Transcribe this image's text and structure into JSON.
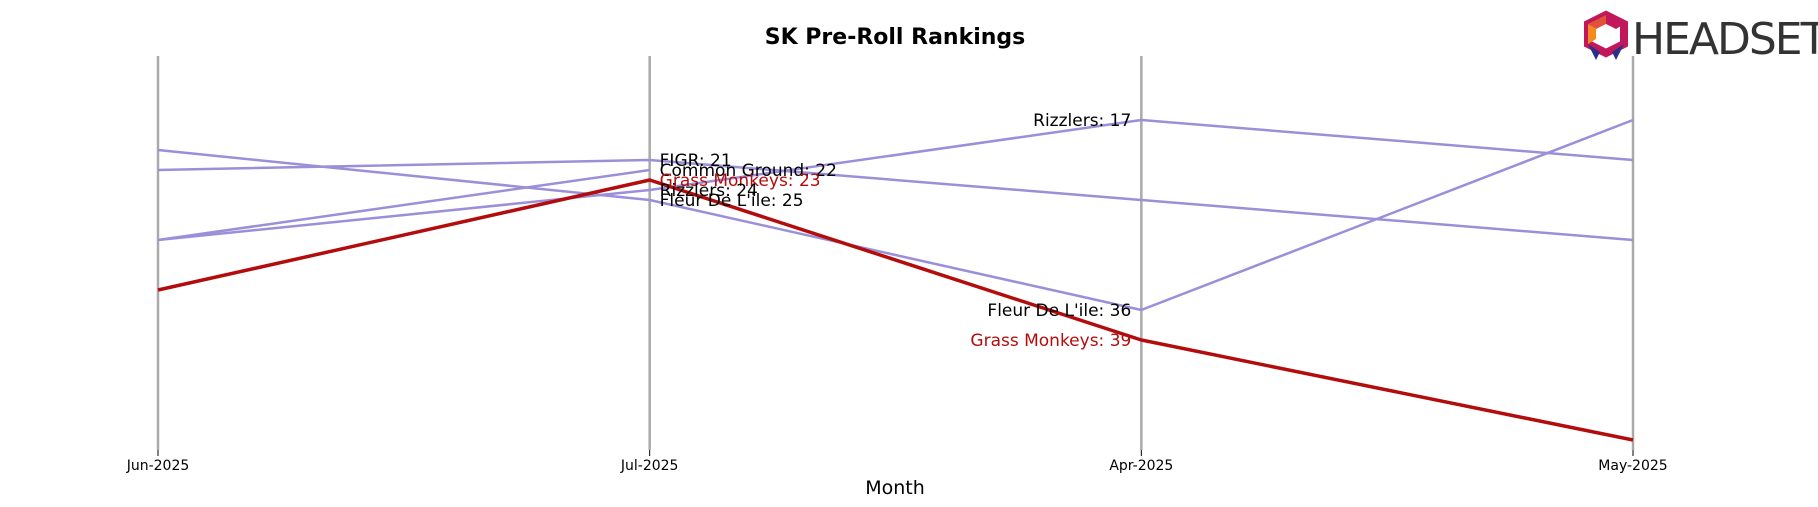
{
  "chart_data": {
    "type": "line",
    "title": "SK Pre-Roll Rankings",
    "xlabel": "Month",
    "ylabel": "",
    "categories": [
      "Jun-2025",
      "Jul-2025",
      "Apr-2025",
      "May-2025"
    ],
    "ylim": [
      50,
      10
    ],
    "y_inverted": true,
    "grid": "vertical lines at each month",
    "series": [
      {
        "name": "FIGR",
        "values": [
          22,
          21,
          null,
          29
        ],
        "highlight": false
      },
      {
        "name": "Common Ground",
        "values": [
          29,
          22,
          null,
          null
        ],
        "highlight": false
      },
      {
        "name": "Rizzlers",
        "values": [
          29,
          24,
          17,
          21
        ],
        "highlight": false
      },
      {
        "name": "Fleur De L'ile",
        "values": [
          20,
          25,
          36,
          17
        ],
        "highlight": false
      },
      {
        "name": "Grass Monkeys",
        "values": [
          34,
          23,
          39,
          49
        ],
        "highlight": true
      }
    ],
    "labels": [
      {
        "series": "FIGR",
        "category": "Jul-2025",
        "value": 21,
        "text": "FIGR: 21",
        "side": "right"
      },
      {
        "series": "Common Ground",
        "category": "Jul-2025",
        "value": 22,
        "text": "Common Ground: 22",
        "side": "right"
      },
      {
        "series": "Grass Monkeys",
        "category": "Jul-2025",
        "value": 23,
        "text": "Grass Monkeys: 23",
        "side": "right"
      },
      {
        "series": "Rizzlers",
        "category": "Jul-2025",
        "value": 24,
        "text": "Rizzlers: 24",
        "side": "right"
      },
      {
        "series": "Fleur De L'ile",
        "category": "Jul-2025",
        "value": 25,
        "text": "Fleur De L'ile: 25",
        "side": "right"
      },
      {
        "series": "Rizzlers",
        "category": "Apr-2025",
        "value": 17,
        "text": "Rizzlers: 17",
        "side": "left"
      },
      {
        "series": "Fleur De L'ile",
        "category": "Apr-2025",
        "value": 36,
        "text": "Fleur De L'ile: 36",
        "side": "left"
      },
      {
        "series": "Grass Monkeys",
        "category": "Apr-2025",
        "value": 39,
        "text": "Grass Monkeys: 39",
        "side": "left"
      }
    ]
  },
  "colors": {
    "series_line": "#9b8fd9",
    "highlight_line": "#b30c0c",
    "highlight_text": "#b30c0c",
    "grid_line": "#aaaaaa",
    "logo_text": "#333333"
  },
  "logo": {
    "text": "HEADSET",
    "icon": "headset-logo-icon"
  }
}
